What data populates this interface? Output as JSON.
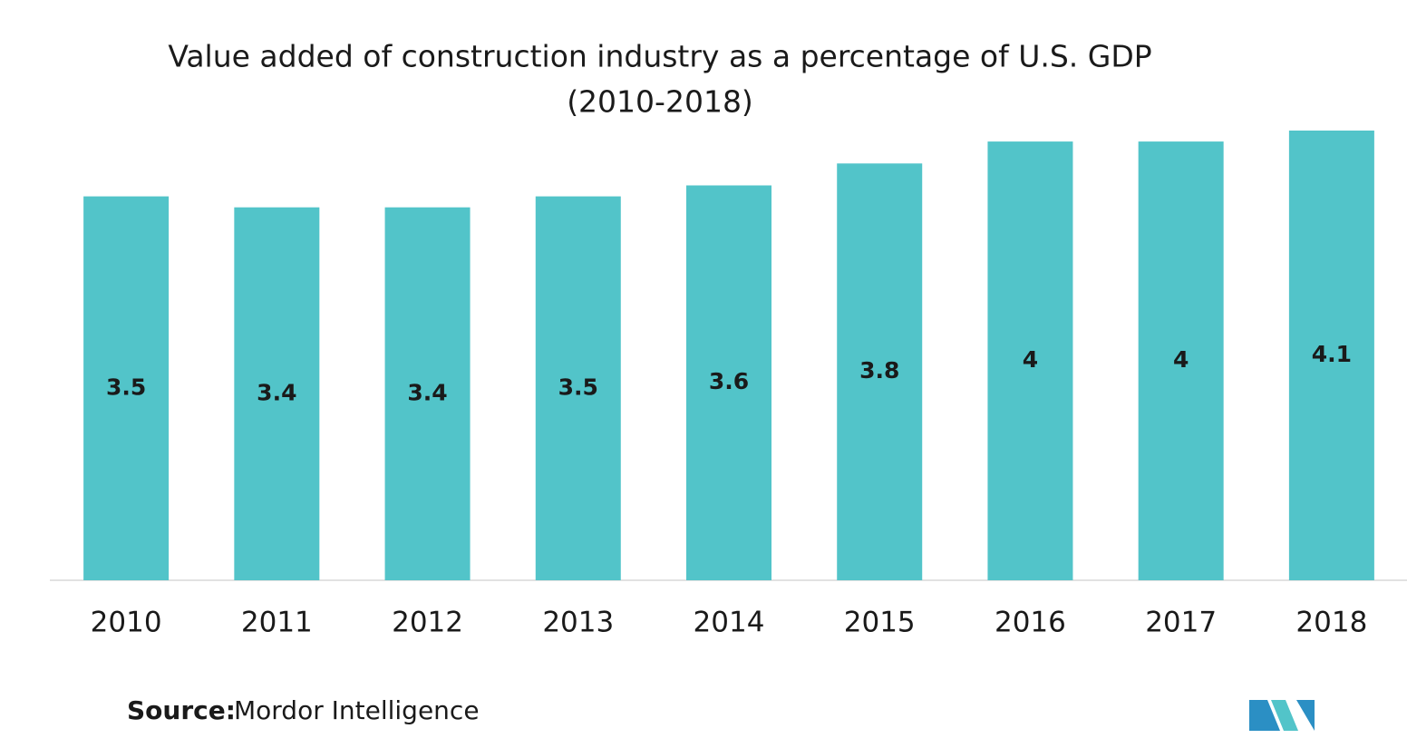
{
  "chart_data": {
    "type": "bar",
    "title": "Value added of construction industry as a percentage of U.S. GDP",
    "subtitle": "(2010-2018)",
    "categories": [
      "2010",
      "2011",
      "2012",
      "2013",
      "2014",
      "2015",
      "2016",
      "2017",
      "2018"
    ],
    "values": [
      3.5,
      3.4,
      3.4,
      3.5,
      3.6,
      3.8,
      4,
      4,
      4.1
    ],
    "color": "#52c4c9",
    "source_label": "Source:",
    "source": "Mordor Intelligence"
  }
}
